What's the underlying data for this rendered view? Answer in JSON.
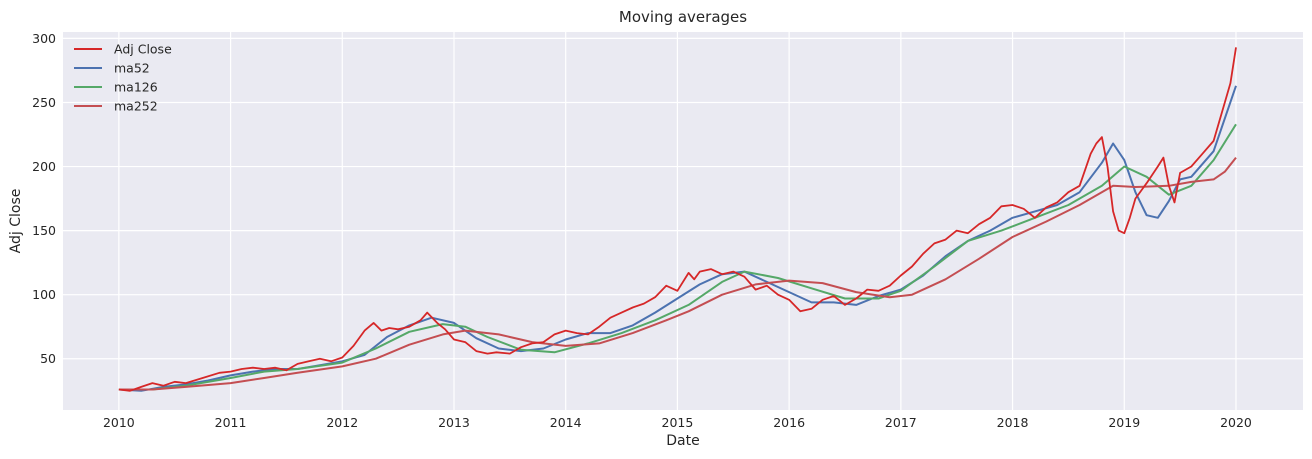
{
  "chart_data": {
    "type": "line",
    "title": "Moving averages",
    "xlabel": "Date",
    "ylabel": "Adj Close",
    "xlim": [
      2009.5,
      2020.6
    ],
    "ylim": [
      10,
      305
    ],
    "x_ticks": [
      2010,
      2011,
      2012,
      2013,
      2014,
      2015,
      2016,
      2017,
      2018,
      2019,
      2020
    ],
    "x_tick_labels": [
      "2010",
      "2011",
      "2012",
      "2013",
      "2014",
      "2015",
      "2016",
      "2017",
      "2018",
      "2019",
      "2020"
    ],
    "y_ticks": [
      50,
      100,
      150,
      200,
      250,
      300
    ],
    "y_tick_labels": [
      "50",
      "100",
      "150",
      "200",
      "250",
      "300"
    ],
    "grid": true,
    "legend_position": "top-left",
    "series": [
      {
        "name": "Adj Close",
        "color": "#d62728",
        "x": [
          2010.0,
          2010.1,
          2010.2,
          2010.3,
          2010.4,
          2010.5,
          2010.6,
          2010.75,
          2010.9,
          2011.0,
          2011.1,
          2011.2,
          2011.3,
          2011.4,
          2011.5,
          2011.6,
          2011.7,
          2011.8,
          2011.9,
          2012.0,
          2012.1,
          2012.2,
          2012.28,
          2012.35,
          2012.42,
          2012.5,
          2012.6,
          2012.7,
          2012.76,
          2012.85,
          2012.92,
          2013.0,
          2013.1,
          2013.2,
          2013.3,
          2013.38,
          2013.5,
          2013.6,
          2013.7,
          2013.8,
          2013.9,
          2014.0,
          2014.1,
          2014.2,
          2014.3,
          2014.4,
          2014.5,
          2014.6,
          2014.7,
          2014.8,
          2014.9,
          2015.0,
          2015.1,
          2015.15,
          2015.2,
          2015.3,
          2015.4,
          2015.5,
          2015.6,
          2015.7,
          2015.8,
          2015.9,
          2016.0,
          2016.1,
          2016.2,
          2016.3,
          2016.4,
          2016.5,
          2016.6,
          2016.7,
          2016.8,
          2016.9,
          2017.0,
          2017.1,
          2017.2,
          2017.3,
          2017.4,
          2017.5,
          2017.6,
          2017.7,
          2017.8,
          2017.9,
          2018.0,
          2018.1,
          2018.2,
          2018.3,
          2018.4,
          2018.5,
          2018.6,
          2018.7,
          2018.75,
          2018.8,
          2018.85,
          2018.9,
          2018.95,
          2019.0,
          2019.05,
          2019.1,
          2019.2,
          2019.3,
          2019.35,
          2019.4,
          2019.45,
          2019.5,
          2019.6,
          2019.7,
          2019.8,
          2019.9,
          2019.95,
          2020.0
        ],
        "values": [
          26,
          25,
          28,
          31,
          29,
          32,
          31,
          35,
          39,
          40,
          42,
          43,
          42,
          43,
          41,
          46,
          48,
          50,
          48,
          51,
          60,
          72,
          78,
          72,
          74,
          73,
          75,
          80,
          86,
          78,
          73,
          65,
          63,
          56,
          54,
          55,
          54,
          59,
          62,
          63,
          69,
          72,
          70,
          69,
          75,
          82,
          86,
          90,
          93,
          98,
          107,
          103,
          117,
          112,
          118,
          120,
          116,
          118,
          114,
          104,
          107,
          100,
          96,
          87,
          89,
          96,
          99,
          92,
          97,
          104,
          103,
          107,
          115,
          122,
          132,
          140,
          143,
          150,
          148,
          155,
          160,
          169,
          170,
          167,
          160,
          168,
          172,
          180,
          185,
          210,
          218,
          223,
          200,
          165,
          150,
          148,
          160,
          175,
          187,
          200,
          207,
          185,
          172,
          195,
          200,
          210,
          220,
          250,
          265,
          293
        ]
      },
      {
        "name": "ma52",
        "color": "#4c72b0",
        "x": [
          2010.0,
          2010.2,
          2010.4,
          2010.6,
          2010.8,
          2011.0,
          2011.2,
          2011.4,
          2011.6,
          2011.8,
          2012.0,
          2012.2,
          2012.4,
          2012.6,
          2012.8,
          2013.0,
          2013.2,
          2013.4,
          2013.6,
          2013.8,
          2014.0,
          2014.2,
          2014.4,
          2014.6,
          2014.8,
          2015.0,
          2015.2,
          2015.4,
          2015.6,
          2015.8,
          2016.0,
          2016.2,
          2016.4,
          2016.6,
          2016.8,
          2017.0,
          2017.2,
          2017.4,
          2017.6,
          2017.8,
          2018.0,
          2018.2,
          2018.4,
          2018.6,
          2018.8,
          2018.9,
          2019.0,
          2019.1,
          2019.2,
          2019.3,
          2019.4,
          2019.5,
          2019.6,
          2019.8,
          2020.0
        ],
        "values": [
          26,
          25,
          28,
          30,
          33,
          37,
          40,
          42,
          42,
          45,
          48,
          53,
          67,
          76,
          82,
          78,
          66,
          58,
          56,
          58,
          65,
          70,
          70,
          76,
          86,
          97,
          108,
          116,
          118,
          110,
          102,
          94,
          94,
          92,
          99,
          104,
          115,
          130,
          142,
          150,
          160,
          165,
          170,
          180,
          203,
          218,
          205,
          180,
          162,
          160,
          173,
          190,
          192,
          212,
          263
        ]
      },
      {
        "name": "ma126",
        "color": "#55a868",
        "x": [
          2010.0,
          2010.3,
          2010.6,
          2011.0,
          2011.3,
          2011.6,
          2012.0,
          2012.3,
          2012.6,
          2012.9,
          2013.1,
          2013.3,
          2013.6,
          2013.9,
          2014.2,
          2014.5,
          2014.8,
          2015.1,
          2015.4,
          2015.6,
          2015.9,
          2016.2,
          2016.5,
          2016.8,
          2017.0,
          2017.3,
          2017.6,
          2017.9,
          2018.2,
          2018.5,
          2018.8,
          2019.0,
          2019.2,
          2019.4,
          2019.6,
          2019.8,
          2020.0
        ],
        "values": [
          26,
          26,
          29,
          35,
          40,
          42,
          47,
          58,
          71,
          77,
          75,
          67,
          57,
          55,
          62,
          70,
          80,
          92,
          110,
          118,
          113,
          105,
          97,
          97,
          103,
          122,
          142,
          150,
          160,
          170,
          185,
          200,
          192,
          178,
          185,
          205,
          233
        ]
      },
      {
        "name": "ma252",
        "color": "#c44e52",
        "x": [
          2010.0,
          2010.3,
          2010.6,
          2011.0,
          2011.3,
          2011.6,
          2012.0,
          2012.3,
          2012.6,
          2012.9,
          2013.1,
          2013.4,
          2013.7,
          2014.0,
          2014.3,
          2014.6,
          2014.9,
          2015.1,
          2015.4,
          2015.7,
          2016.0,
          2016.3,
          2016.6,
          2016.9,
          2017.1,
          2017.4,
          2017.7,
          2018.0,
          2018.3,
          2018.6,
          2018.9,
          2019.1,
          2019.4,
          2019.6,
          2019.8,
          2019.9,
          2020.0
        ],
        "values": [
          26,
          26,
          28,
          31,
          35,
          39,
          44,
          50,
          61,
          69,
          72,
          69,
          63,
          60,
          62,
          70,
          80,
          87,
          100,
          108,
          111,
          109,
          102,
          98,
          100,
          112,
          128,
          145,
          157,
          170,
          185,
          184,
          185,
          188,
          190,
          196,
          207
        ]
      }
    ]
  }
}
